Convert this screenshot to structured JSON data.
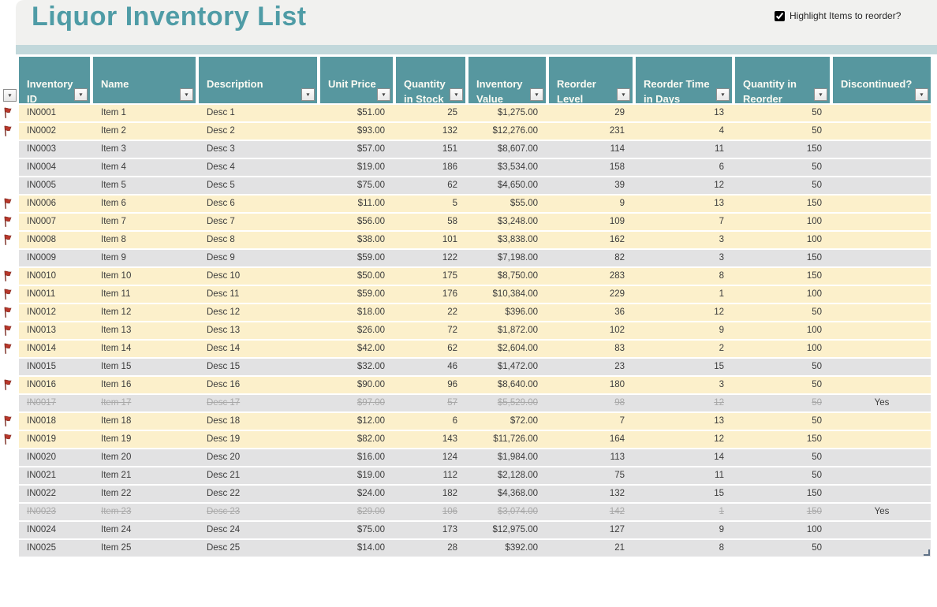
{
  "page": {
    "title": "Liquor Inventory List"
  },
  "controls": {
    "highlight_label": "Highlight Items to reorder?",
    "highlight_checked": true
  },
  "colors": {
    "accent_teal": "#57979f",
    "band_teal": "#c2d8db",
    "title_teal": "#4f9ca6",
    "reorder_row": "#fcf0cb",
    "normal_row": "#e2e2e3",
    "discontinued_text": "#a8a8a8",
    "flag_red": "#b8372b"
  },
  "table": {
    "filter_icon": "▼",
    "columns": [
      {
        "label": "Inventory\nID",
        "align": "left"
      },
      {
        "label": "Name",
        "align": "left"
      },
      {
        "label": "Description",
        "align": "left"
      },
      {
        "label": "Unit Price",
        "align": "right"
      },
      {
        "label": "Quantity\nin Stock",
        "align": "right"
      },
      {
        "label": "Inventory\nValue",
        "align": "right"
      },
      {
        "label": "Reorder\nLevel",
        "align": "right"
      },
      {
        "label": "Reorder Time\nin Days",
        "align": "right"
      },
      {
        "label": "Quantity in\nReorder",
        "align": "right"
      },
      {
        "label": "Discontinued?",
        "align": "center"
      }
    ],
    "rows": [
      {
        "flag": true,
        "state": "reorder",
        "cells": [
          "IN0001",
          "Item 1",
          "Desc 1",
          "$51.00",
          "25",
          "$1,275.00",
          "29",
          "13",
          "50",
          ""
        ]
      },
      {
        "flag": true,
        "state": "reorder",
        "cells": [
          "IN0002",
          "Item 2",
          "Desc 2",
          "$93.00",
          "132",
          "$12,276.00",
          "231",
          "4",
          "50",
          ""
        ]
      },
      {
        "flag": false,
        "state": "normal",
        "cells": [
          "IN0003",
          "Item 3",
          "Desc 3",
          "$57.00",
          "151",
          "$8,607.00",
          "114",
          "11",
          "150",
          ""
        ]
      },
      {
        "flag": false,
        "state": "normal",
        "cells": [
          "IN0004",
          "Item 4",
          "Desc 4",
          "$19.00",
          "186",
          "$3,534.00",
          "158",
          "6",
          "50",
          ""
        ]
      },
      {
        "flag": false,
        "state": "normal",
        "cells": [
          "IN0005",
          "Item 5",
          "Desc 5",
          "$75.00",
          "62",
          "$4,650.00",
          "39",
          "12",
          "50",
          ""
        ]
      },
      {
        "flag": true,
        "state": "reorder",
        "cells": [
          "IN0006",
          "Item 6",
          "Desc 6",
          "$11.00",
          "5",
          "$55.00",
          "9",
          "13",
          "150",
          ""
        ]
      },
      {
        "flag": true,
        "state": "reorder",
        "cells": [
          "IN0007",
          "Item 7",
          "Desc 7",
          "$56.00",
          "58",
          "$3,248.00",
          "109",
          "7",
          "100",
          ""
        ]
      },
      {
        "flag": true,
        "state": "reorder",
        "cells": [
          "IN0008",
          "Item 8",
          "Desc 8",
          "$38.00",
          "101",
          "$3,838.00",
          "162",
          "3",
          "100",
          ""
        ]
      },
      {
        "flag": false,
        "state": "normal",
        "cells": [
          "IN0009",
          "Item 9",
          "Desc 9",
          "$59.00",
          "122",
          "$7,198.00",
          "82",
          "3",
          "150",
          ""
        ]
      },
      {
        "flag": true,
        "state": "reorder",
        "cells": [
          "IN0010",
          "Item 10",
          "Desc 10",
          "$50.00",
          "175",
          "$8,750.00",
          "283",
          "8",
          "150",
          ""
        ]
      },
      {
        "flag": true,
        "state": "reorder",
        "cells": [
          "IN0011",
          "Item 11",
          "Desc 11",
          "$59.00",
          "176",
          "$10,384.00",
          "229",
          "1",
          "100",
          ""
        ]
      },
      {
        "flag": true,
        "state": "reorder",
        "cells": [
          "IN0012",
          "Item 12",
          "Desc 12",
          "$18.00",
          "22",
          "$396.00",
          "36",
          "12",
          "50",
          ""
        ]
      },
      {
        "flag": true,
        "state": "reorder",
        "cells": [
          "IN0013",
          "Item 13",
          "Desc 13",
          "$26.00",
          "72",
          "$1,872.00",
          "102",
          "9",
          "100",
          ""
        ]
      },
      {
        "flag": true,
        "state": "reorder",
        "cells": [
          "IN0014",
          "Item 14",
          "Desc 14",
          "$42.00",
          "62",
          "$2,604.00",
          "83",
          "2",
          "100",
          ""
        ]
      },
      {
        "flag": false,
        "state": "normal",
        "cells": [
          "IN0015",
          "Item 15",
          "Desc 15",
          "$32.00",
          "46",
          "$1,472.00",
          "23",
          "15",
          "50",
          ""
        ]
      },
      {
        "flag": true,
        "state": "reorder",
        "cells": [
          "IN0016",
          "Item 16",
          "Desc 16",
          "$90.00",
          "96",
          "$8,640.00",
          "180",
          "3",
          "50",
          ""
        ]
      },
      {
        "flag": false,
        "state": "discontinued",
        "cells": [
          "IN0017",
          "Item 17",
          "Desc 17",
          "$97.00",
          "57",
          "$5,529.00",
          "98",
          "12",
          "50",
          "Yes"
        ]
      },
      {
        "flag": true,
        "state": "reorder",
        "cells": [
          "IN0018",
          "Item 18",
          "Desc 18",
          "$12.00",
          "6",
          "$72.00",
          "7",
          "13",
          "50",
          ""
        ]
      },
      {
        "flag": true,
        "state": "reorder",
        "cells": [
          "IN0019",
          "Item 19",
          "Desc 19",
          "$82.00",
          "143",
          "$11,726.00",
          "164",
          "12",
          "150",
          ""
        ]
      },
      {
        "flag": false,
        "state": "normal",
        "cells": [
          "IN0020",
          "Item 20",
          "Desc 20",
          "$16.00",
          "124",
          "$1,984.00",
          "113",
          "14",
          "50",
          ""
        ]
      },
      {
        "flag": false,
        "state": "normal",
        "cells": [
          "IN0021",
          "Item 21",
          "Desc 21",
          "$19.00",
          "112",
          "$2,128.00",
          "75",
          "11",
          "50",
          ""
        ]
      },
      {
        "flag": false,
        "state": "normal",
        "cells": [
          "IN0022",
          "Item 22",
          "Desc 22",
          "$24.00",
          "182",
          "$4,368.00",
          "132",
          "15",
          "150",
          ""
        ]
      },
      {
        "flag": false,
        "state": "discontinued",
        "cells": [
          "IN0023",
          "Item 23",
          "Desc 23",
          "$29.00",
          "106",
          "$3,074.00",
          "142",
          "1",
          "150",
          "Yes"
        ]
      },
      {
        "flag": false,
        "state": "normal",
        "cells": [
          "IN0024",
          "Item 24",
          "Desc 24",
          "$75.00",
          "173",
          "$12,975.00",
          "127",
          "9",
          "100",
          ""
        ]
      },
      {
        "flag": false,
        "state": "normal",
        "cells": [
          "IN0025",
          "Item 25",
          "Desc 25",
          "$14.00",
          "28",
          "$392.00",
          "21",
          "8",
          "50",
          ""
        ]
      }
    ]
  }
}
